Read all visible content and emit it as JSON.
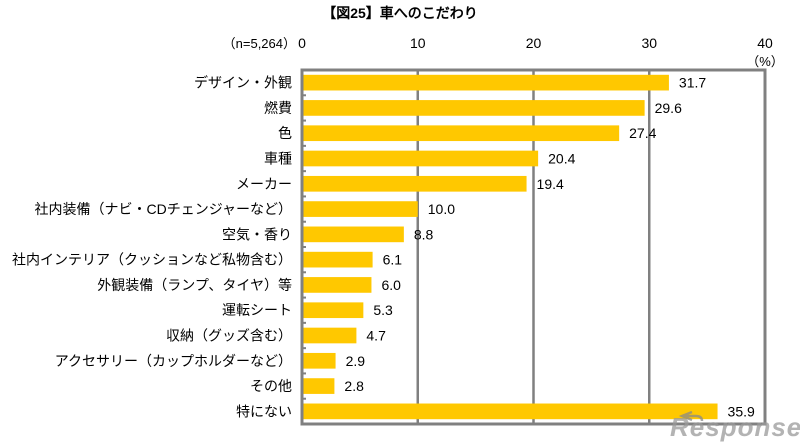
{
  "chart_data": {
    "type": "bar",
    "orientation": "horizontal",
    "title": "【図25】車へのこだわり",
    "sample_note": "（n=5,264）",
    "unit_label": "（%）",
    "xlabel": "",
    "ylabel": "",
    "xlim": [
      0,
      40
    ],
    "x_ticks": [
      0,
      10,
      20,
      30,
      40
    ],
    "x_tick_labels": [
      "0",
      "10",
      "20",
      "30",
      "40"
    ],
    "grid": true,
    "legend": "none",
    "bar_color": "#ffc800",
    "categories": [
      "デザイン・外観",
      "燃費",
      "色",
      "車種",
      "メーカー",
      "社内装備（ナビ・CDチェンジャーなど）",
      "空気・香り",
      "社内インテリア（クッションなど私物含む）",
      "外観装備（ランプ、タイヤ）等",
      "運転シート",
      "収納（グッズ含む）",
      "アクセサリー（カップホルダーなど）",
      "その他",
      "特にない"
    ],
    "values": [
      31.7,
      29.6,
      27.4,
      20.4,
      19.4,
      10.0,
      8.8,
      6.1,
      6.0,
      5.3,
      4.7,
      2.9,
      2.8,
      35.9
    ],
    "value_labels": [
      "31.7",
      "29.6",
      "27.4",
      "20.4",
      "19.4",
      "10.0",
      "8.8",
      "6.1",
      "6.0",
      "5.3",
      "4.7",
      "2.9",
      "2.8",
      "35.9"
    ]
  },
  "watermark": "Response."
}
